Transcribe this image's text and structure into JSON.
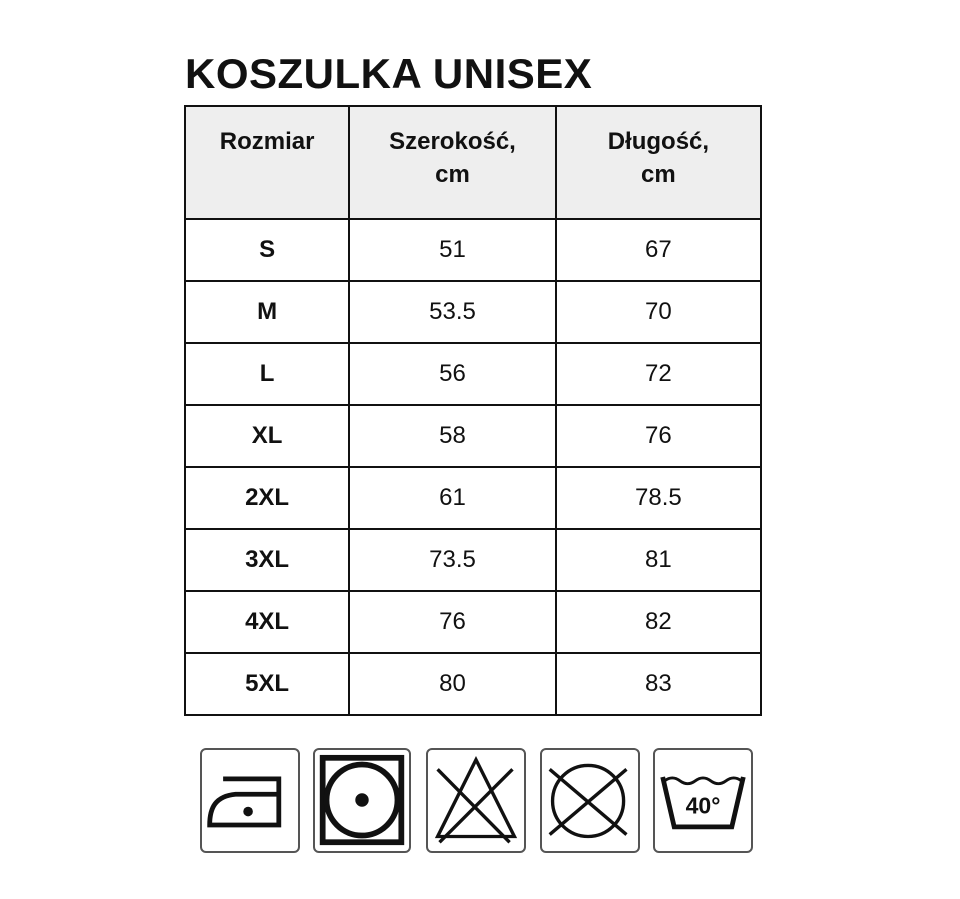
{
  "title": "KOSZULKA UNISEX",
  "table": {
    "headers": [
      "Rozmiar",
      "Szerokość,\ncm",
      "Długość,\ncm"
    ],
    "rows": [
      [
        "S",
        "51",
        "67"
      ],
      [
        "M",
        "53.5",
        "70"
      ],
      [
        "L",
        "56",
        "72"
      ],
      [
        "XL",
        "58",
        "76"
      ],
      [
        "2XL",
        "61",
        "78.5"
      ],
      [
        "3XL",
        "73.5",
        "81"
      ],
      [
        "4XL",
        "76",
        "82"
      ],
      [
        "5XL",
        "80",
        "83"
      ]
    ]
  },
  "care_icons": [
    {
      "name": "iron-low-temperature-icon"
    },
    {
      "name": "tumble-dry-low-icon"
    },
    {
      "name": "do-not-bleach-icon"
    },
    {
      "name": "do-not-dry-clean-icon"
    },
    {
      "name": "wash-40-icon",
      "label": "40°"
    }
  ]
}
